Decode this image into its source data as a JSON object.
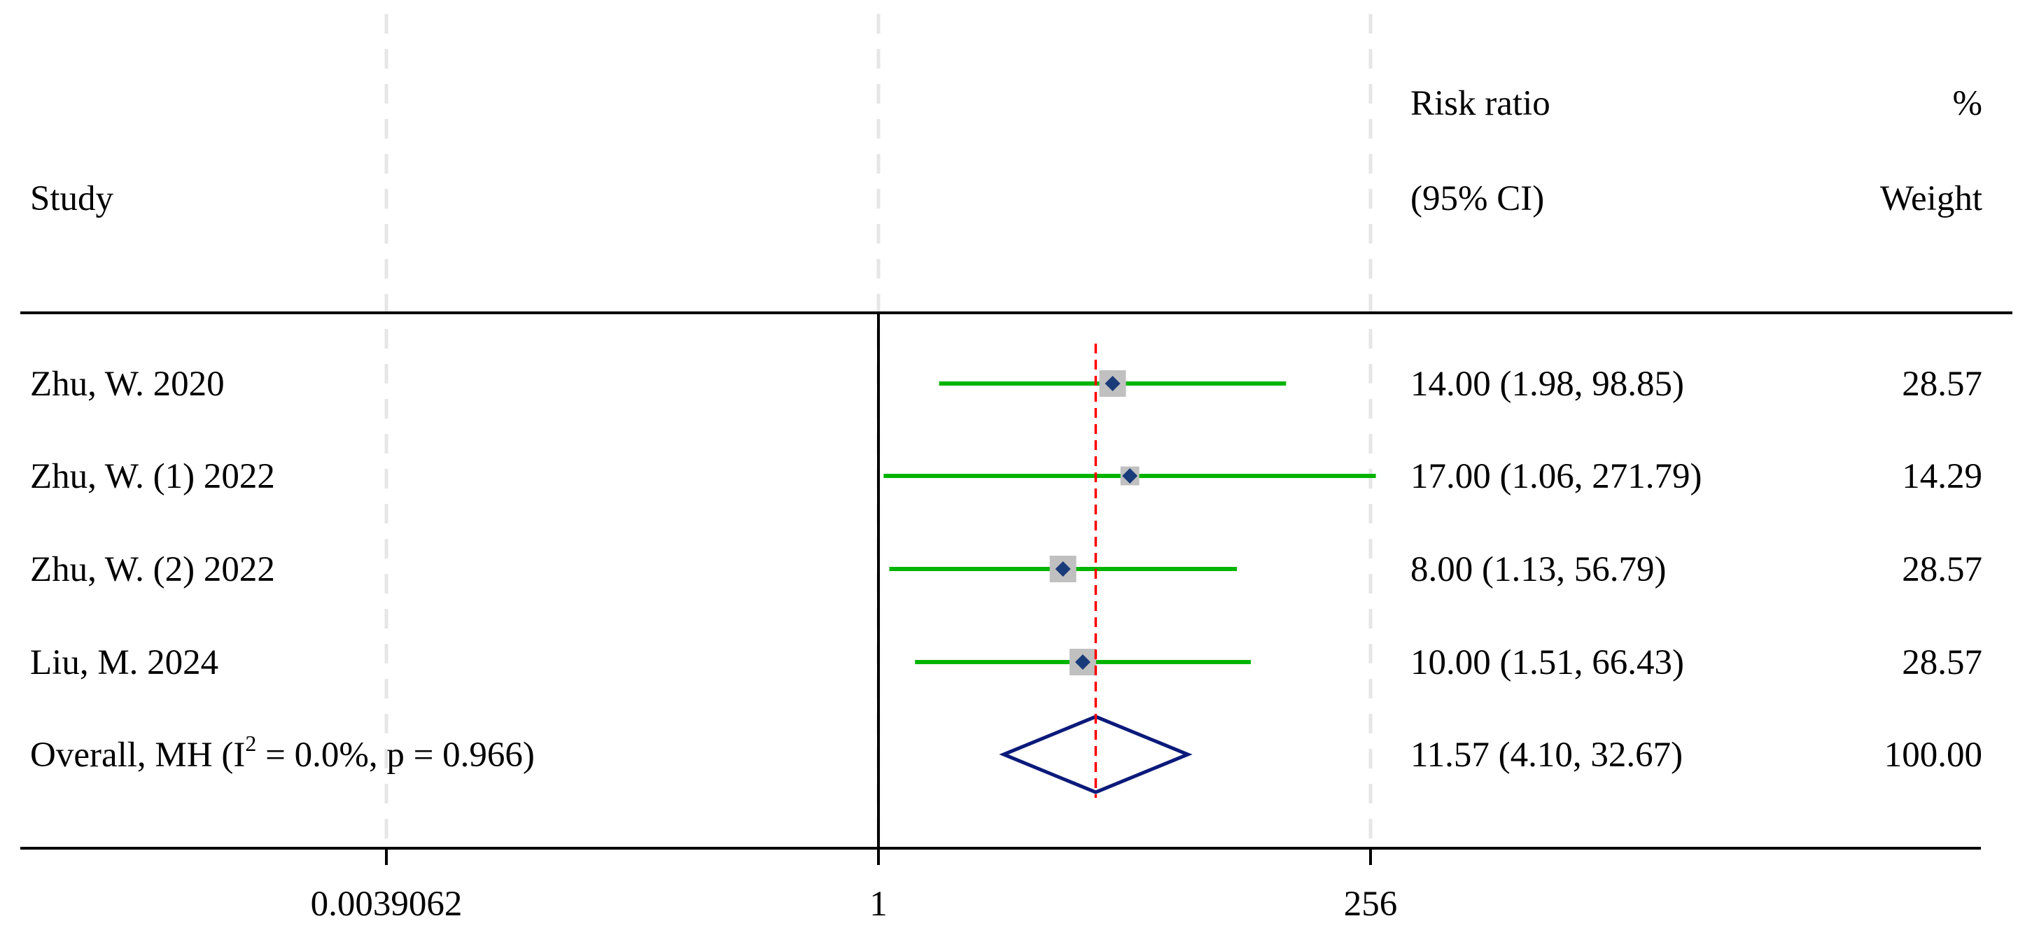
{
  "header": {
    "study": "Study",
    "rr_line1": "Risk ratio",
    "rr_line2": "(95% CI)",
    "wt_line1": "%",
    "wt_line2": "Weight"
  },
  "colors": {
    "ci_line": "#00b400",
    "marker": "#1a3b7a",
    "box": "#c0c0c0",
    "reference": "#ff0000",
    "diamond": "#0b1a7a",
    "gridline": "#e6e6e6"
  },
  "chart_data": {
    "type": "forest",
    "x_scale": "log2",
    "xlim": [
      0.0039062,
      256
    ],
    "x_ticks": [
      {
        "value": 0.0039062,
        "label": "0.0039062"
      },
      {
        "value": 1,
        "label": "1"
      },
      {
        "value": 256,
        "label": "256"
      }
    ],
    "overall_estimate_line": 11.57,
    "studies": [
      {
        "name": "Zhu, W. 2020",
        "rr": 14.0,
        "lower": 1.98,
        "upper": 98.85,
        "ci_text": "14.00 (1.98, 98.85)",
        "weight": 28.57,
        "weight_text": "28.57"
      },
      {
        "name": "Zhu, W. (1) 2022",
        "rr": 17.0,
        "lower": 1.06,
        "upper": 271.79,
        "ci_text": "17.00 (1.06, 271.79)",
        "weight": 14.29,
        "weight_text": "14.29"
      },
      {
        "name": "Zhu, W. (2) 2022",
        "rr": 8.0,
        "lower": 1.13,
        "upper": 56.79,
        "ci_text": "8.00 (1.13, 56.79)",
        "weight": 28.57,
        "weight_text": "28.57"
      },
      {
        "name": "Liu, M. 2024",
        "rr": 10.0,
        "lower": 1.51,
        "upper": 66.43,
        "ci_text": "10.00 (1.51, 66.43)",
        "weight": 28.57,
        "weight_text": "28.57"
      }
    ],
    "overall": {
      "label_prefix": "Overall, MH (I",
      "label_sup": "2",
      "label_suffix": " = 0.0%, p = 0.966)",
      "rr": 11.57,
      "lower": 4.1,
      "upper": 32.67,
      "ci_text": "11.57 (4.10, 32.67)",
      "weight": 100.0,
      "weight_text": "100.00"
    }
  }
}
